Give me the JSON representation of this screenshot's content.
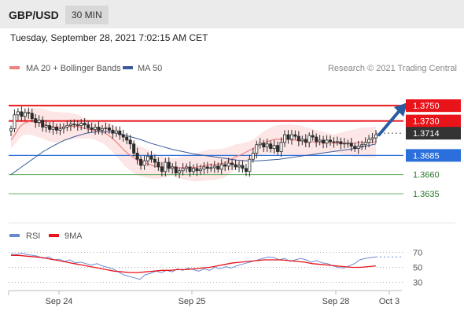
{
  "header": {
    "pair": "GBP/USD",
    "timeframe": "30 MIN",
    "datetime": "Tuesday, September 28, 2021 7:02:15 AM CET"
  },
  "legend": {
    "ma20": "MA 20 + Bollinger Bands",
    "ma50": "MA 50",
    "credit": "Research © 2021 Trading Central"
  },
  "rsi_legend": {
    "rsi": "RSI",
    "ma9": "9MA"
  },
  "colors": {
    "candle": "#2b2b2b",
    "ma20": "#f08080",
    "band": "#fce0e0",
    "ma50": "#3a5a9a",
    "resistance": "#e8141a",
    "support_blue": "#2a6fdb",
    "support_green": "#3a9a3a",
    "arrow": "#2a5aa0",
    "rsi": "#6a8ad0",
    "rsi_ma": "#e8141a"
  },
  "chart_data": [
    {
      "type": "candlestick",
      "title": "GBP/USD 30 MIN",
      "x_labels": [
        "Sep 24",
        "Sep 25",
        "Sep 28",
        "Oct 3"
      ],
      "ylim": [
        1.36,
        1.378
      ],
      "levels": [
        {
          "label": "1.3750",
          "value": 1.375,
          "kind": "resistance"
        },
        {
          "label": "1.3730",
          "value": 1.373,
          "kind": "resistance"
        },
        {
          "label": "1.3714",
          "value": 1.3714,
          "kind": "current"
        },
        {
          "label": "1.3685",
          "value": 1.3685,
          "kind": "support_blue"
        },
        {
          "label": "1.3660",
          "value": 1.366,
          "kind": "support_green"
        },
        {
          "label": "1.3635",
          "value": 1.3635,
          "kind": "support_green"
        }
      ],
      "close": [
        1.372,
        1.3738,
        1.3742,
        1.3736,
        1.3741,
        1.374,
        1.3733,
        1.3728,
        1.3731,
        1.3722,
        1.3724,
        1.3719,
        1.3722,
        1.3718,
        1.372,
        1.3722,
        1.3724,
        1.3726,
        1.3725,
        1.3724,
        1.3727,
        1.3725,
        1.3721,
        1.3719,
        1.3722,
        1.3718,
        1.372,
        1.3721,
        1.3718,
        1.3714,
        1.3717,
        1.3712,
        1.3709,
        1.3705,
        1.37,
        1.3688,
        1.368,
        1.3672,
        1.3678,
        1.3684,
        1.368,
        1.3676,
        1.367,
        1.3664,
        1.3676,
        1.3668,
        1.367,
        1.3662,
        1.3665,
        1.3668,
        1.367,
        1.3664,
        1.3668,
        1.3665,
        1.3667,
        1.367,
        1.3668,
        1.3669,
        1.3671,
        1.3667,
        1.3673,
        1.3671,
        1.3675,
        1.3673,
        1.367,
        1.3672,
        1.3668,
        1.3664,
        1.368,
        1.3688,
        1.3699,
        1.3701,
        1.3696,
        1.37,
        1.3694,
        1.3698,
        1.369,
        1.3702,
        1.3712,
        1.3706,
        1.3712,
        1.371,
        1.3704,
        1.3706,
        1.3702,
        1.3711,
        1.3709,
        1.3703,
        1.3705,
        1.3701,
        1.3705,
        1.3703,
        1.3702,
        1.3703,
        1.37,
        1.3701,
        1.3701,
        1.3697,
        1.3694,
        1.3697,
        1.3699,
        1.3702,
        1.3706,
        1.3708,
        1.3712
      ],
      "ma20": [
        1.3705,
        1.3713,
        1.3722,
        1.3727,
        1.3729,
        1.3729,
        1.3728,
        1.3727,
        1.3725,
        1.3723,
        1.3722,
        1.3722,
        1.3722,
        1.3723,
        1.3723,
        1.3723,
        1.3722,
        1.372,
        1.3719,
        1.3718,
        1.3717,
        1.3716,
        1.3713,
        1.3709,
        1.3704,
        1.3698,
        1.3692,
        1.3687,
        1.3683,
        1.3679,
        1.3677,
        1.3675,
        1.3673,
        1.3671,
        1.367,
        1.367,
        1.367,
        1.367,
        1.3669,
        1.3669,
        1.3669,
        1.3669,
        1.3669,
        1.367,
        1.3671,
        1.3672,
        1.3673,
        1.3673,
        1.3674,
        1.3675,
        1.3678,
        1.3681,
        1.3684,
        1.3686,
        1.3689,
        1.3692,
        1.3695,
        1.3698,
        1.3701,
        1.3703,
        1.3705,
        1.3706,
        1.3706,
        1.3706,
        1.3706,
        1.3705,
        1.3705,
        1.3704,
        1.3703,
        1.3703,
        1.3702,
        1.3702,
        1.3702,
        1.3702,
        1.3701,
        1.3701,
        1.3701,
        1.3701,
        1.3701,
        1.3701,
        1.3702,
        1.3702,
        1.3702,
        1.3702,
        1.3703
      ],
      "ma50": [
        1.366,
        1.367,
        1.368,
        1.369,
        1.3698,
        1.3705,
        1.371,
        1.3714,
        1.3716,
        1.3716,
        1.3714,
        1.371,
        1.3706,
        1.3701,
        1.3697,
        1.3693,
        1.369,
        1.3687,
        1.3685,
        1.3683,
        1.3681,
        1.3679,
        1.3678,
        1.3678,
        1.3679,
        1.368,
        1.3682,
        1.3684,
        1.3686,
        1.3688,
        1.369,
        1.3692,
        1.3694,
        1.3697,
        1.37
      ]
    },
    {
      "type": "line",
      "title": "RSI",
      "ylim": [
        20,
        80
      ],
      "ticks": [
        "70",
        "50",
        "30"
      ],
      "series": [
        {
          "name": "RSI",
          "values": [
            68,
            67,
            69,
            67,
            66,
            65,
            62,
            64,
            60,
            61,
            58,
            60,
            56,
            57,
            55,
            53,
            55,
            52,
            50,
            48,
            44,
            40,
            38,
            36,
            34,
            40,
            42,
            45,
            43,
            46,
            44,
            48,
            46,
            49,
            47,
            45,
            48,
            46,
            50,
            48,
            51,
            49,
            52,
            54,
            56,
            58,
            60,
            62,
            64,
            63,
            60,
            62,
            58,
            60,
            62,
            60,
            57,
            59,
            56,
            55,
            52,
            50,
            49,
            52,
            55,
            60,
            62,
            63,
            64
          ]
        },
        {
          "name": "9MA",
          "values": [
            66,
            66,
            65,
            64,
            63,
            61,
            59,
            57,
            55,
            53,
            51,
            49,
            47,
            45,
            44,
            43,
            43,
            44,
            45,
            46,
            46,
            47,
            47,
            48,
            49,
            50,
            52,
            54,
            56,
            57,
            58,
            59,
            60,
            60,
            60,
            59,
            58,
            57,
            55,
            54,
            53,
            52,
            51,
            50,
            50,
            51,
            52
          ]
        }
      ]
    }
  ]
}
